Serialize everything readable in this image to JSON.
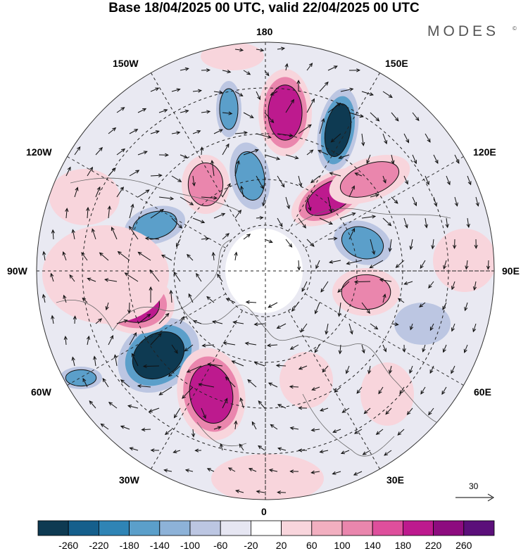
{
  "title": "Base 18/04/2025 00 UTC, valid 22/04/2025 00 UTC",
  "brand": {
    "text": "MODES",
    "mark": "©"
  },
  "longitude_labels": {
    "top": "180",
    "bottom": "0",
    "left": "90W",
    "right": "90E",
    "upper_left": "150W",
    "upper_right": "150E",
    "mid_upper_left": "120W",
    "mid_upper_right": "120E",
    "lower_left": "60W",
    "lower_right": "60E",
    "bottom_left": "30W",
    "bottom_right": "30E"
  },
  "reference_vector": {
    "label": "30"
  },
  "colorbar": {
    "labels": [
      "-260",
      "-220",
      "-180",
      "-140",
      "-100",
      "-60",
      "-20",
      "20",
      "60",
      "100",
      "140",
      "180",
      "220",
      "260"
    ],
    "colors": [
      "#0e3a52",
      "#155f8c",
      "#2f84b5",
      "#5b9fca",
      "#8db2d8",
      "#bcc6e2",
      "#e6e6f2",
      "#ffffff",
      "#f8d5dc",
      "#f2afc0",
      "#ea86ad",
      "#de4f9c",
      "#bd1a8e",
      "#8d0c7f",
      "#5b0f7a"
    ]
  },
  "colors": {
    "negative_strong": "#0e3a52",
    "negative_mid": "#5b9fca",
    "negative_weak": "#bcc6e2",
    "positive_weak": "#f8d5dc",
    "positive_mid": "#ea86ad",
    "positive_strong": "#bd1a8e"
  },
  "map": {
    "projection": "north-polar-stereographic",
    "field": "geopotential-height-anomaly",
    "wind_vectors": true,
    "coastlines": true,
    "graticule": "dashed"
  }
}
